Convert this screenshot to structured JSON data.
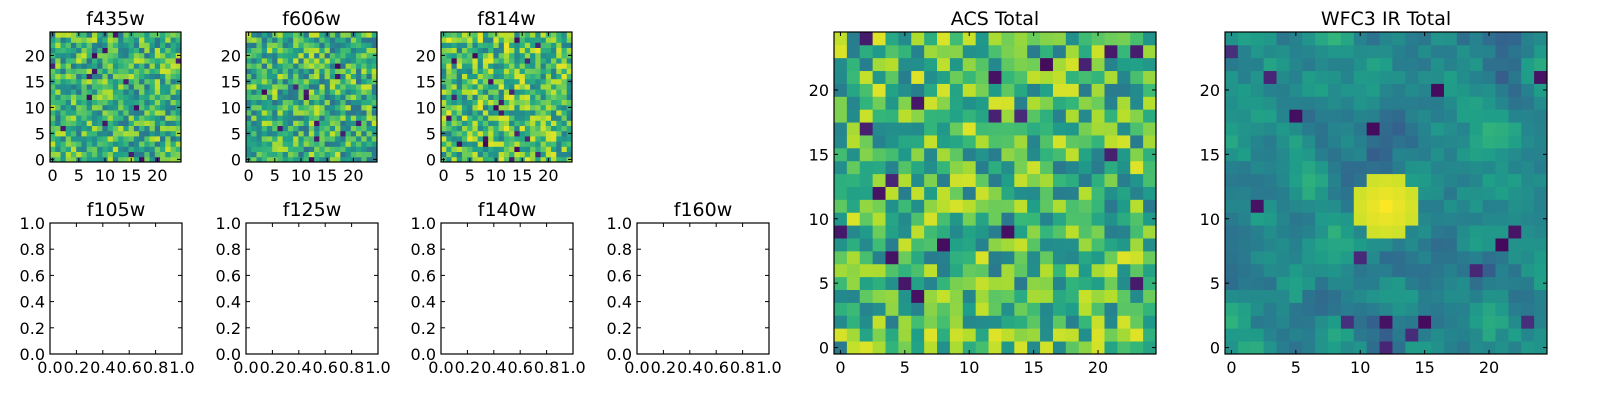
{
  "chart_data": [
    {
      "type": "heatmap",
      "title": "f435w",
      "grid": [
        25,
        25
      ],
      "xlim": [
        -0.5,
        24.5
      ],
      "ylim": [
        -0.5,
        24.5
      ],
      "xticks": [
        "0",
        "5",
        "10",
        "15",
        "20"
      ],
      "yticks": [
        "0",
        "5",
        "10",
        "15",
        "20"
      ],
      "colormap": "viridis",
      "seed": 435,
      "bias": 0.65,
      "smooth": 0
    },
    {
      "type": "heatmap",
      "title": "f606w",
      "grid": [
        25,
        25
      ],
      "xlim": [
        -0.5,
        24.5
      ],
      "ylim": [
        -0.5,
        24.5
      ],
      "xticks": [
        "0",
        "5",
        "10",
        "15",
        "20"
      ],
      "yticks": [
        "0",
        "5",
        "10",
        "15",
        "20"
      ],
      "colormap": "viridis",
      "seed": 606,
      "bias": 0.65,
      "smooth": 0
    },
    {
      "type": "heatmap",
      "title": "f814w",
      "grid": [
        25,
        25
      ],
      "xlim": [
        -0.5,
        24.5
      ],
      "ylim": [
        -0.5,
        24.5
      ],
      "xticks": [
        "0",
        "5",
        "10",
        "15",
        "20"
      ],
      "yticks": [
        "0",
        "5",
        "10",
        "15",
        "20"
      ],
      "colormap": "viridis",
      "seed": 814,
      "bias": 0.7,
      "smooth": 0
    },
    {
      "type": "heatmap",
      "title": "f105w",
      "empty": true,
      "xlim": [
        0,
        1
      ],
      "ylim": [
        0,
        1
      ],
      "xticks": [
        "0.0",
        "0.2",
        "0.4",
        "0.6",
        "0.8",
        "1.0"
      ],
      "yticks": [
        "0.0",
        "0.2",
        "0.4",
        "0.6",
        "0.8",
        "1.0"
      ]
    },
    {
      "type": "heatmap",
      "title": "f125w",
      "empty": true,
      "xlim": [
        0,
        1
      ],
      "ylim": [
        0,
        1
      ],
      "xticks": [
        "0.0",
        "0.2",
        "0.4",
        "0.6",
        "0.8",
        "1.0"
      ],
      "yticks": [
        "0.0",
        "0.2",
        "0.4",
        "0.6",
        "0.8",
        "1.0"
      ]
    },
    {
      "type": "heatmap",
      "title": "f140w",
      "empty": true,
      "xlim": [
        0,
        1
      ],
      "ylim": [
        0,
        1
      ],
      "xticks": [
        "0.0",
        "0.2",
        "0.4",
        "0.6",
        "0.8",
        "1.0"
      ],
      "yticks": [
        "0.0",
        "0.2",
        "0.4",
        "0.6",
        "0.8",
        "1.0"
      ]
    },
    {
      "type": "heatmap",
      "title": "f160w",
      "empty": true,
      "xlim": [
        0,
        1
      ],
      "ylim": [
        0,
        1
      ],
      "xticks": [
        "0.0",
        "0.2",
        "0.4",
        "0.6",
        "0.8",
        "1.0"
      ],
      "yticks": [
        "0.0",
        "0.2",
        "0.4",
        "0.6",
        "0.8",
        "1.0"
      ]
    },
    {
      "type": "heatmap",
      "title": "ACS Total",
      "grid": [
        25,
        25
      ],
      "xlim": [
        -0.5,
        24.5
      ],
      "ylim": [
        -0.5,
        24.5
      ],
      "xticks": [
        "0",
        "5",
        "10",
        "15",
        "20"
      ],
      "yticks": [
        "0",
        "5",
        "10",
        "15",
        "20"
      ],
      "colormap": "viridis",
      "seed": 2001,
      "bias": 0.68,
      "smooth": 0
    },
    {
      "type": "heatmap",
      "title": "WFC3 IR Total",
      "grid": [
        25,
        25
      ],
      "xlim": [
        -0.5,
        24.5
      ],
      "ylim": [
        -0.5,
        24.5
      ],
      "xticks": [
        "0",
        "5",
        "10",
        "15",
        "20"
      ],
      "yticks": [
        "0",
        "5",
        "10",
        "15",
        "20"
      ],
      "colormap": "viridis",
      "seed": 3003,
      "bias": 0.48,
      "smooth": 1,
      "hotspot": [
        12,
        11
      ]
    }
  ]
}
